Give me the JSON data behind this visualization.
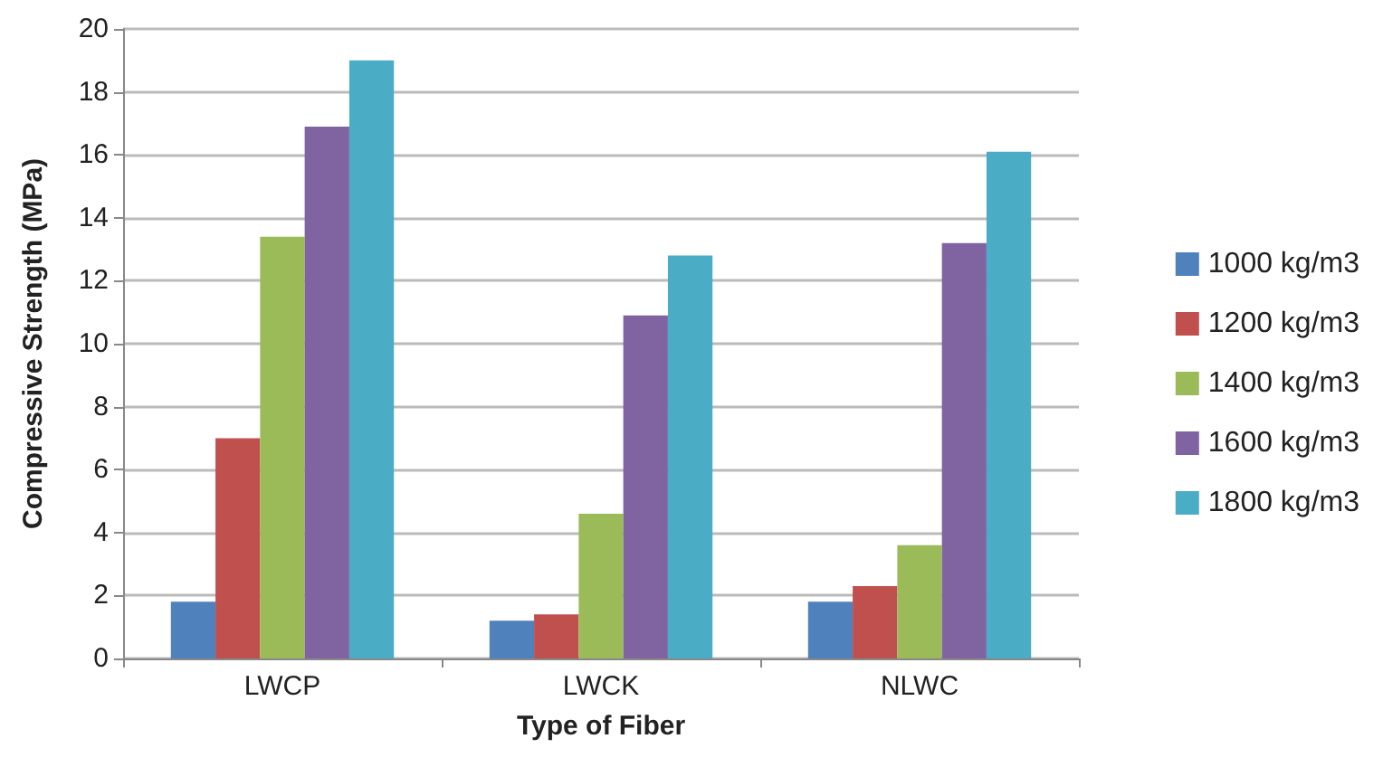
{
  "chart_data": {
    "type": "bar",
    "xlabel": "Type of Fiber",
    "ylabel": "Compressive Strength (MPa)",
    "categories": [
      "LWCP",
      "LWCK",
      "NLWC"
    ],
    "series": [
      {
        "name": "1000 kg/m3",
        "color": "#4f81bd",
        "values": [
          1.8,
          1.2,
          1.8
        ]
      },
      {
        "name": "1200 kg/m3",
        "color": "#c0504d",
        "values": [
          7.0,
          1.4,
          2.3
        ]
      },
      {
        "name": "1400 kg/m3",
        "color": "#9bbb59",
        "values": [
          13.4,
          4.6,
          3.6
        ]
      },
      {
        "name": "1600 kg/m3",
        "color": "#8064a2",
        "values": [
          16.9,
          10.9,
          13.2
        ]
      },
      {
        "name": "1800 kg/m3",
        "color": "#4bacc6",
        "values": [
          19.0,
          12.8,
          16.1
        ]
      }
    ],
    "ylim": [
      0,
      20
    ],
    "yticks": [
      0,
      2,
      4,
      6,
      8,
      10,
      12,
      14,
      16,
      18,
      20
    ],
    "grid": "y",
    "legend": "right"
  }
}
